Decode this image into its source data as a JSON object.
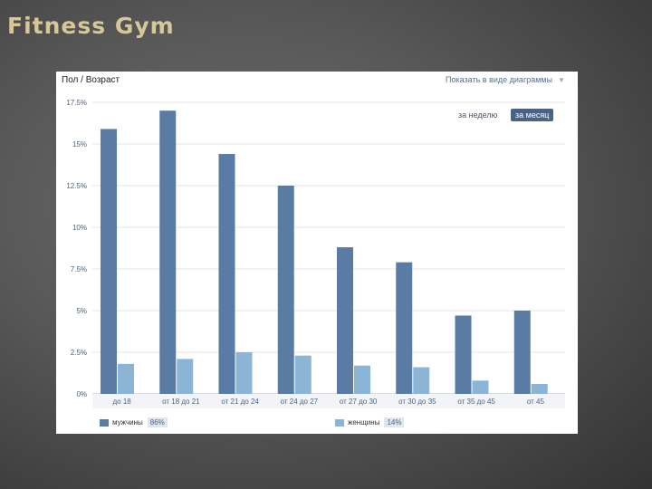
{
  "slide": {
    "title": "Fitness Gym"
  },
  "panel": {
    "title": "Пол / Возраст",
    "view_toggle": "Показать в виде диаграммы",
    "period_week": "за неделю",
    "period_month": "за месяц"
  },
  "colors": {
    "men": "#5a7ba3",
    "women": "#8cb4d5",
    "grid": "#e4e4e4",
    "axis_text": "#4a6384"
  },
  "chart_data": {
    "type": "bar",
    "title": "",
    "xlabel": "",
    "ylabel": "",
    "ylim": [
      0,
      17.5
    ],
    "yticks": [
      0,
      2.5,
      5,
      7.5,
      10,
      12.5,
      15,
      17.5
    ],
    "ytick_labels": [
      "0%",
      "2.5%",
      "5%",
      "7.5%",
      "10%",
      "12.5%",
      "15%",
      "17.5%"
    ],
    "categories": [
      "до 18",
      "от 18 до 21",
      "от 21 до 24",
      "от 24 до 27",
      "от 27 до 30",
      "от 30 до 35",
      "от 35 до 45",
      "от 45"
    ],
    "series": [
      {
        "name": "мужчины",
        "share": "86%",
        "values": [
          15.9,
          17.0,
          14.4,
          12.5,
          8.8,
          7.9,
          4.7,
          5.0
        ]
      },
      {
        "name": "женщины",
        "share": "14%",
        "values": [
          1.8,
          2.1,
          2.5,
          2.3,
          1.7,
          1.6,
          0.8,
          0.6
        ]
      }
    ],
    "grid": true,
    "legend": "bottom"
  }
}
